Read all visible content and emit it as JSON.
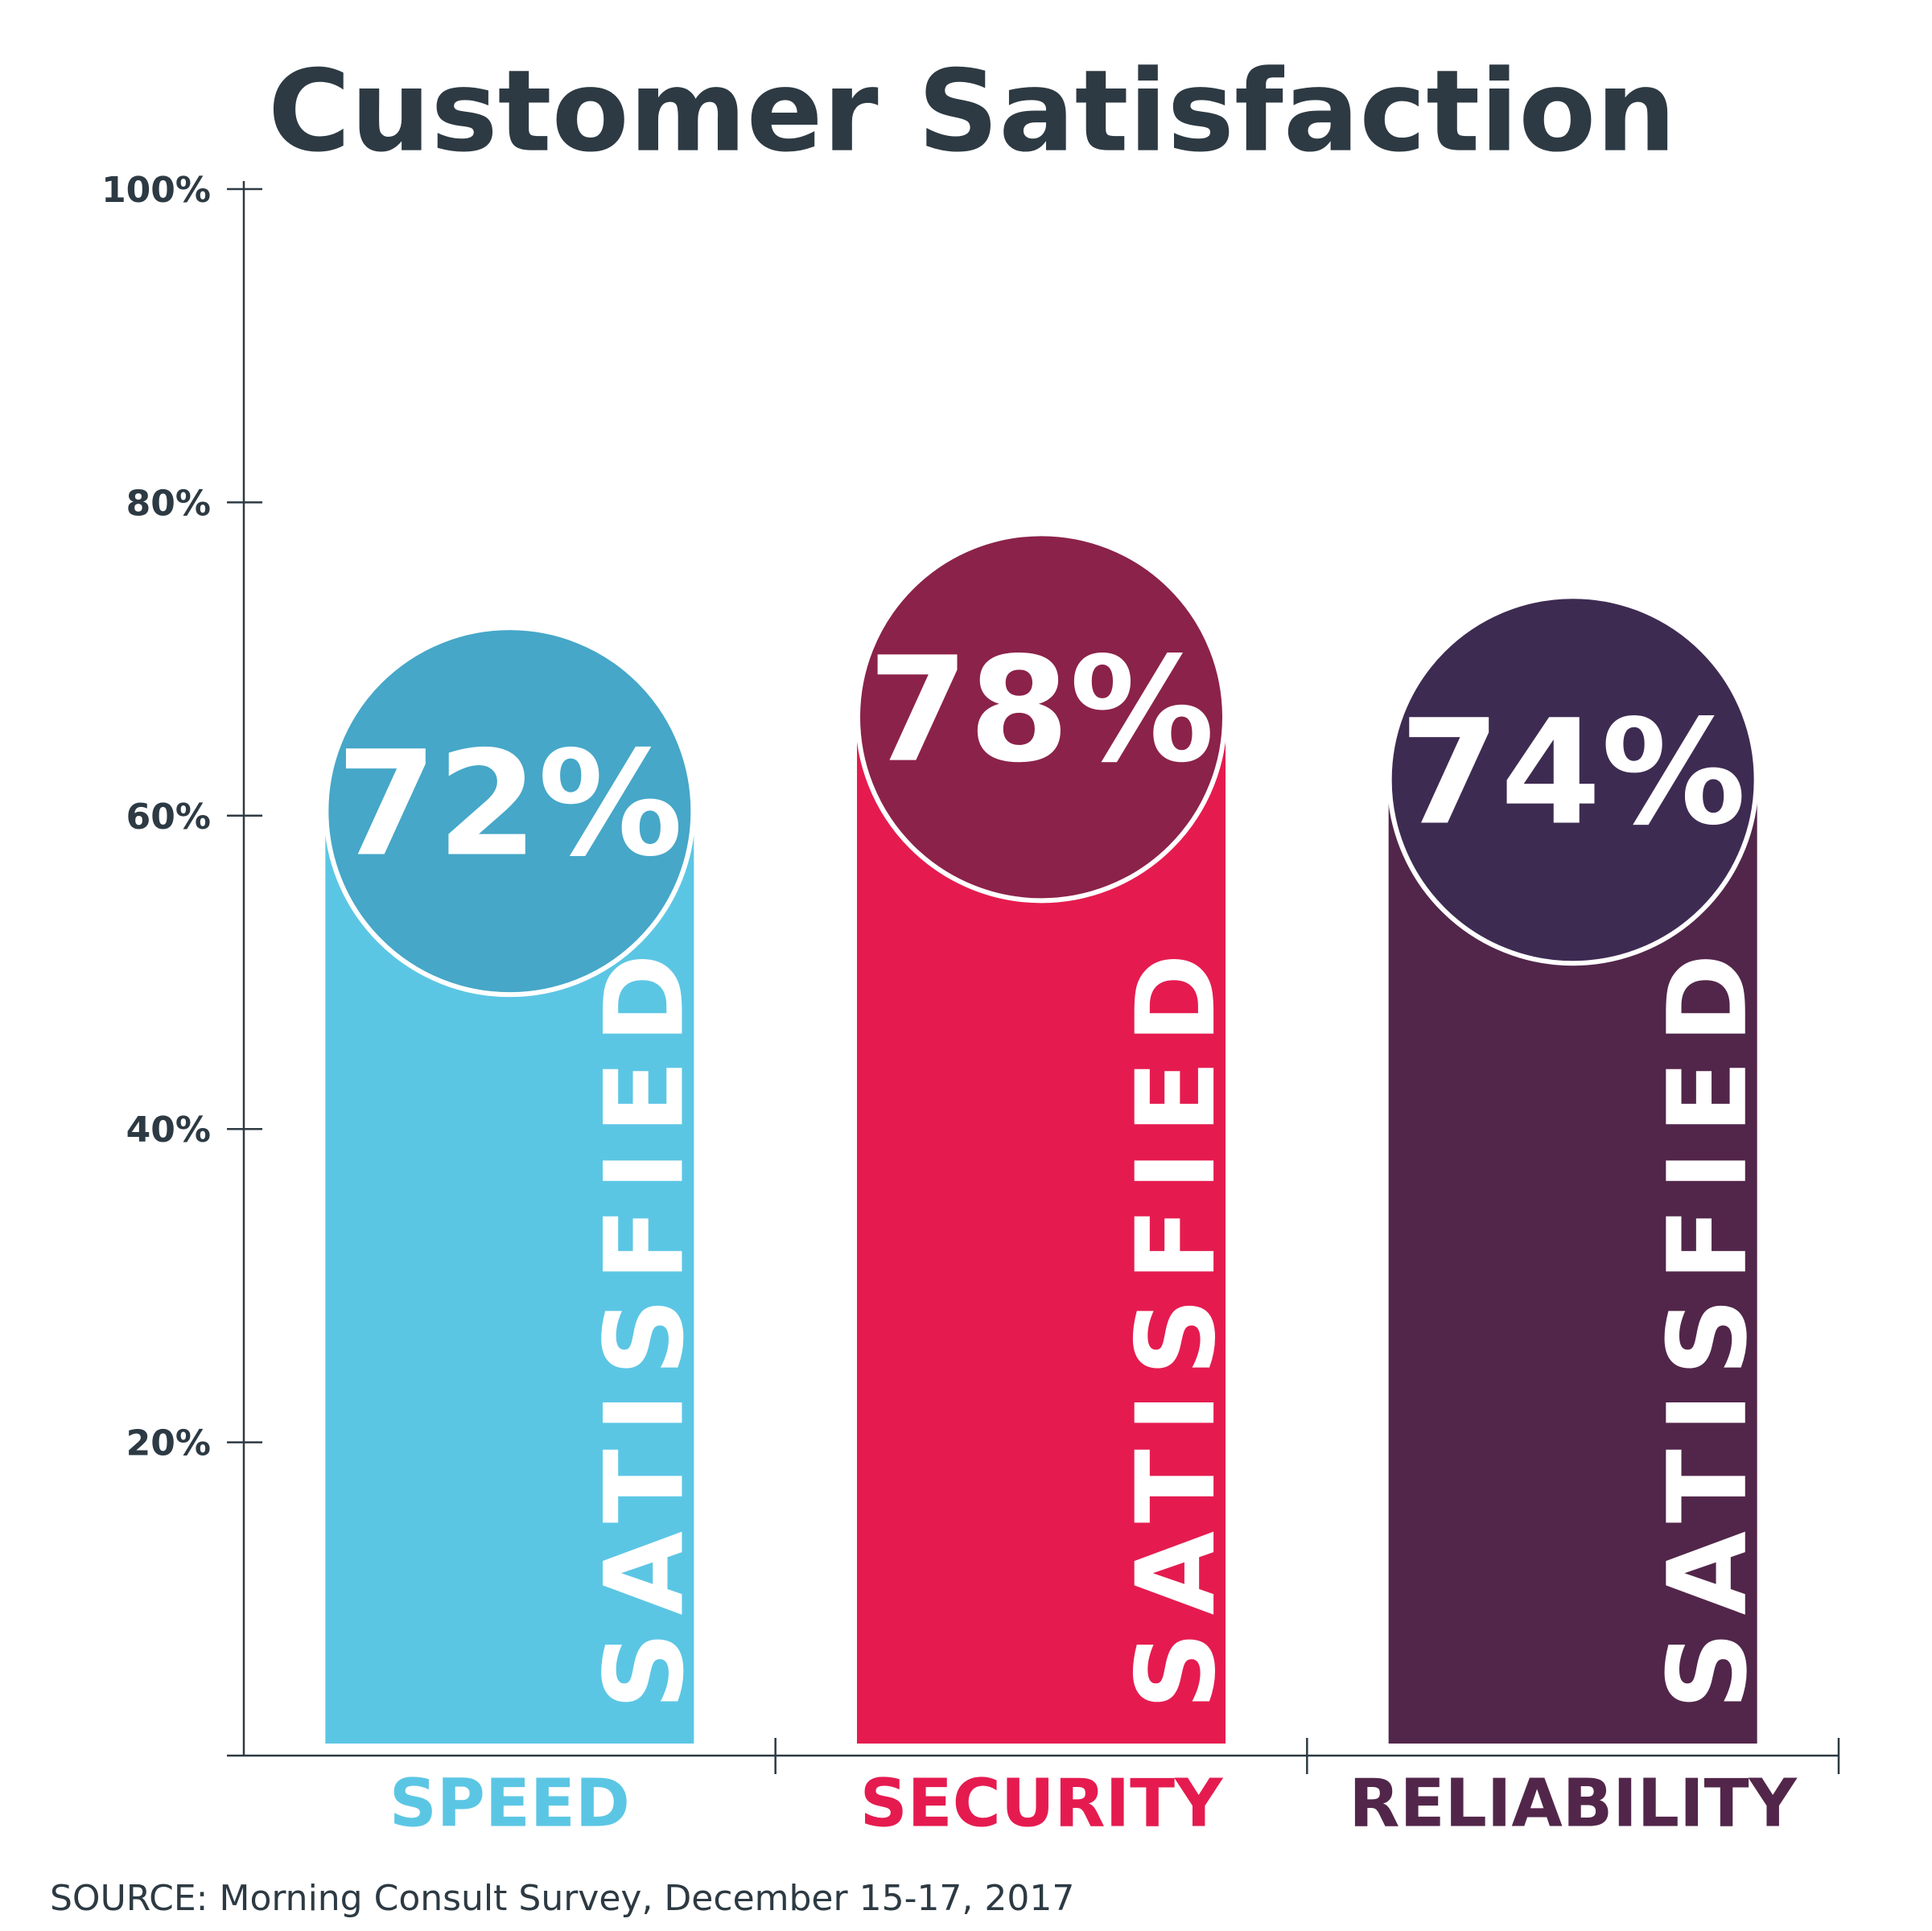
{
  "chart_data": {
    "type": "bar",
    "title": "Customer Satisfaction",
    "categories": [
      "SPEED",
      "SECURITY",
      "RELIABILITY"
    ],
    "values": [
      72,
      78,
      74
    ],
    "value_labels": [
      "72%",
      "78%",
      "74%"
    ],
    "colors": [
      "#5bc6e4",
      "#e51b4f",
      "#52264a"
    ],
    "circle_colors": [
      "#46a7c8",
      "#8b2249",
      "#3e2b52"
    ],
    "bar_text": "SATISFIED",
    "ylim": [
      0,
      100
    ],
    "yticks": [
      {
        "value": 20,
        "label": "20%"
      },
      {
        "value": 40,
        "label": "40%"
      },
      {
        "value": 60,
        "label": "60%"
      },
      {
        "value": 80,
        "label": "80%"
      },
      {
        "value": 100,
        "label": "100%"
      }
    ],
    "source": "SOURCE:  Morning Consult Survey, December 15-17, 2017"
  }
}
